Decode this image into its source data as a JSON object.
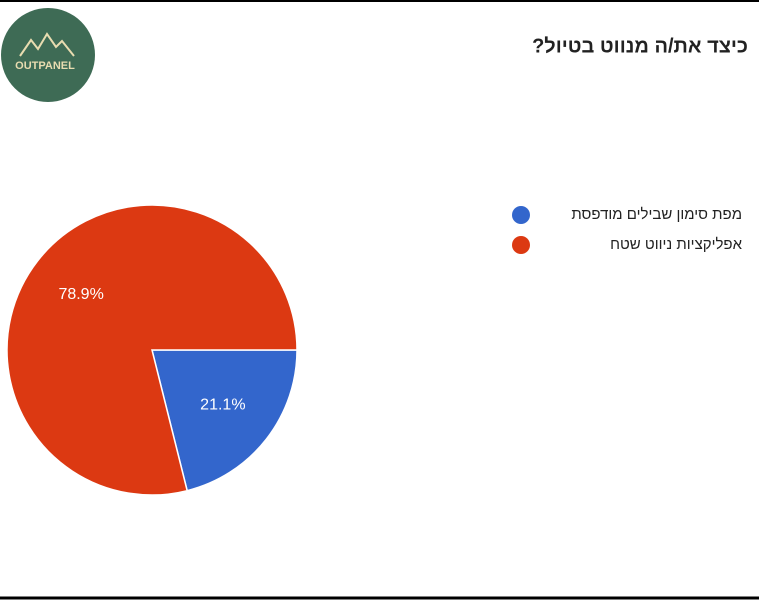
{
  "logo": "OUTPANEL",
  "chart_data": {
    "type": "pie",
    "title": "כיצד את/ה מנווט בטיול?",
    "categories": [
      "מפת סימון שבילים מודפסת",
      "אפליקציות ניווט שטח"
    ],
    "values": [
      21.1,
      78.9
    ],
    "value_labels": [
      "21.1%",
      "78.9%"
    ],
    "colors": [
      "#3366cc",
      "#dc3912"
    ],
    "legend": "right"
  }
}
